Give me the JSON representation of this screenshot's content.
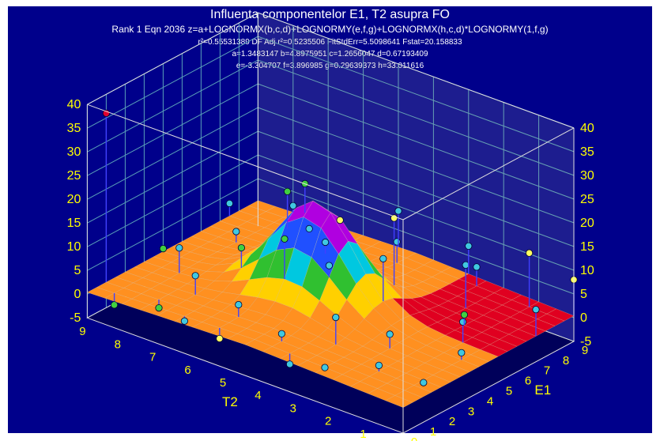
{
  "header": {
    "title": "Influenta componentelor E1, T2 asupra FO",
    "equation": "Rank 1  Eqn 2036  z=a+LOGNORMX(b,c,d)+LOGNORMY(e,f,g)+LOGNORMX(h,c,d)*LOGNORMY(1,f,g)",
    "stats": "r²=0.55531389  DF Adj r²=0.5235506  FitStdErr=5.5098641  Fstat=20.158833",
    "params_line1": "a=1.3483147 b=4.8975951 c=1.2656047 d=0.67193409",
    "params_line2": "e=-3.304707 f=3.896985 g=0.29639373 h=33.011616"
  },
  "colors": {
    "background": "#00008b",
    "axis_text": "#ffff00",
    "grid": "#5aa0b8",
    "box_line": "#e0e0e0",
    "surface_low": "#e06000",
    "surface_mid": "#ffd000",
    "surface_green": "#30c030",
    "surface_cyan": "#00c8e0",
    "surface_blue": "#2050ff",
    "surface_peak": "#b000e0",
    "residual_region": "#e00020",
    "marker_default": "#40c8e0",
    "marker_green": "#40d040",
    "marker_yellow": "#ffff60",
    "marker_red": "#e00030",
    "stem": "#4040ff"
  },
  "chart_data": {
    "type": "surface3d",
    "title": "Influenta componentelor E1, T2 asupra FO",
    "xlabel": "T2",
    "ylabel": "E1",
    "zlabel": "",
    "xlim": [
      0,
      9
    ],
    "ylim": [
      0,
      9
    ],
    "zlim": [
      -5,
      40
    ],
    "x_ticks": [
      "0",
      "1",
      "2",
      "3",
      "4",
      "5",
      "6",
      "7",
      "8",
      "9"
    ],
    "y_ticks": [
      "0",
      "1",
      "2",
      "3",
      "4",
      "5",
      "6",
      "7",
      "8",
      "9"
    ],
    "z_ticks": [
      "-5",
      "0",
      "5",
      "10",
      "15",
      "20",
      "25",
      "30",
      "35",
      "40"
    ],
    "equation": "z=a+LOGNORMX(b,c,d)+LOGNORMY(e,f,g)+LOGNORMX(h,c,d)*LOGNORMY(1,f,g)",
    "parameters": {
      "a": 1.3483147,
      "b": 4.8975951,
      "c": 1.2656047,
      "d": 0.67193409,
      "e": -3.304707,
      "f": 3.896985,
      "g": 0.29639373,
      "h": 33.011616
    },
    "fit_stats": {
      "r2": 0.55531389,
      "adj_r2": 0.5235506,
      "fit_std_err": 5.5098641,
      "fstat": 20.158833
    },
    "surface_peak_z": 21,
    "surface_baseline_z": 1.5,
    "data_points": [
      {
        "t2": 9,
        "e1": 1.0,
        "z": 36,
        "c": "red"
      },
      {
        "t2": 6.0,
        "e1": 5.0,
        "z": 19,
        "c": "green"
      },
      {
        "t2": 5.5,
        "e1": 5.0,
        "z": 22,
        "c": "green"
      },
      {
        "t2": 4.5,
        "e1": 5.0,
        "z": 17,
        "c": "yellow"
      },
      {
        "t2": 3.5,
        "e1": 6.0,
        "z": 18,
        "c": "yellow"
      },
      {
        "t2": 5.0,
        "e1": 3.0,
        "z": 16,
        "c": "green"
      },
      {
        "t2": 4.0,
        "e1": 3.5,
        "z": 12,
        "c": "cyan"
      },
      {
        "t2": 3.0,
        "e1": 4.5,
        "z": 14,
        "c": "cyan"
      },
      {
        "t2": 2.0,
        "e1": 7.0,
        "z": 10,
        "c": "cyan"
      },
      {
        "t2": 1.0,
        "e1": 8.5,
        "z": 12,
        "c": "yellow"
      },
      {
        "t2": 8.0,
        "e1": 3.0,
        "z": 6,
        "c": "cyan"
      },
      {
        "t2": 7.0,
        "e1": 2.0,
        "z": 5,
        "c": "cyan"
      },
      {
        "t2": 6.5,
        "e1": 3.5,
        "z": 9,
        "c": "green"
      },
      {
        "t2": 5.5,
        "e1": 1.5,
        "z": 4,
        "c": "cyan"
      },
      {
        "t2": 4.0,
        "e1": 1.0,
        "z": 3,
        "c": "cyan"
      },
      {
        "t2": 3.0,
        "e1": 2.0,
        "z": 7,
        "c": "cyan"
      },
      {
        "t2": 2.0,
        "e1": 3.0,
        "z": 4,
        "c": "cyan"
      },
      {
        "t2": 1.0,
        "e1": 5.0,
        "z": 5,
        "c": "cyan"
      },
      {
        "t2": 0.0,
        "e1": 7.0,
        "z": 6,
        "c": "cyan"
      },
      {
        "t2": 0.0,
        "e1": 9.0,
        "z": 8,
        "c": "yellow"
      },
      {
        "t2": 9.0,
        "e1": 4.0,
        "z": 1,
        "c": "green"
      },
      {
        "t2": 8.0,
        "e1": 6.0,
        "z": 3,
        "c": "cyan"
      },
      {
        "t2": 7.0,
        "e1": 8.0,
        "z": 2,
        "c": "cyan"
      },
      {
        "t2": 6.0,
        "e1": 7.0,
        "z": 4,
        "c": "cyan"
      },
      {
        "t2": 4.5,
        "e1": 8.0,
        "z": 6,
        "c": "cyan"
      },
      {
        "t2": 2.5,
        "e1": 8.5,
        "z": 5,
        "c": "cyan"
      },
      {
        "t2": 1.5,
        "e1": 6.0,
        "z": 3,
        "c": "green"
      },
      {
        "t2": 0.5,
        "e1": 4.0,
        "z": 2,
        "c": "cyan"
      },
      {
        "t2": 8.5,
        "e1": 0.5,
        "z": -2,
        "c": "green"
      },
      {
        "t2": 7.5,
        "e1": 1.0,
        "z": -1,
        "c": "green"
      },
      {
        "t2": 6.5,
        "e1": 0.5,
        "z": 0,
        "c": "cyan"
      },
      {
        "t2": 5.5,
        "e1": 0.5,
        "z": -1,
        "c": "yellow"
      },
      {
        "t2": 3.5,
        "e1": 0.5,
        "z": -1,
        "c": "cyan"
      },
      {
        "t2": 2.5,
        "e1": 0.5,
        "z": 1,
        "c": "cyan"
      },
      {
        "t2": 1.5,
        "e1": 1.5,
        "z": 2,
        "c": "cyan"
      },
      {
        "t2": 0.5,
        "e1": 2.0,
        "z": 0,
        "c": "cyan"
      },
      {
        "t2": 9.0,
        "e1": 7.5,
        "z": 3,
        "c": "cyan"
      },
      {
        "t2": 8.0,
        "e1": 9.0,
        "z": 2,
        "c": "cyan"
      },
      {
        "t2": 5.0,
        "e1": 9.0,
        "z": 9,
        "c": "cyan"
      },
      {
        "t2": 3.0,
        "e1": 9.0,
        "z": 7,
        "c": "cyan"
      }
    ]
  }
}
